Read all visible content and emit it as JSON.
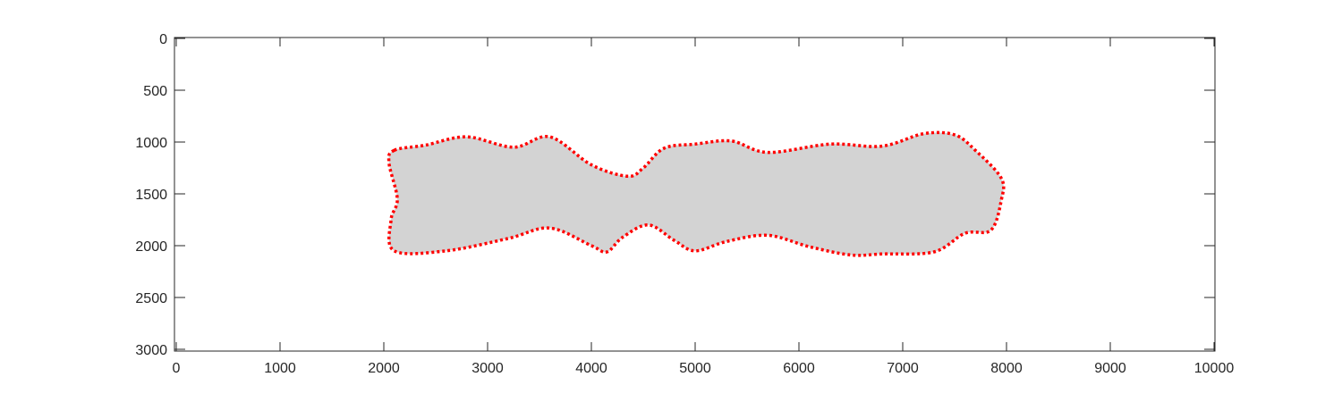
{
  "chart_data": {
    "type": "area",
    "title": "",
    "xlabel": "",
    "ylabel": "",
    "xlim": [
      0,
      10000
    ],
    "ylim": [
      0,
      3000
    ],
    "y_reversed": true,
    "grid": false,
    "x_ticks": [
      "0",
      "1000",
      "2000",
      "3000",
      "4000",
      "5000",
      "6000",
      "7000",
      "8000",
      "9000",
      "10000"
    ],
    "y_ticks": [
      "0",
      "500",
      "1000",
      "1500",
      "2000",
      "2500",
      "3000"
    ],
    "colors": {
      "fill": "#d3d3d3",
      "outline": "#ff0000",
      "axes": "#262626"
    },
    "series": [
      {
        "points": [
          [
            2100,
            1080
          ],
          [
            2400,
            1030
          ],
          [
            2800,
            950
          ],
          [
            3250,
            1050
          ],
          [
            3600,
            950
          ],
          [
            4000,
            1220
          ],
          [
            4350,
            1330
          ],
          [
            4500,
            1250
          ],
          [
            4700,
            1060
          ],
          [
            5000,
            1020
          ],
          [
            5350,
            990
          ],
          [
            5700,
            1100
          ],
          [
            6300,
            1020
          ],
          [
            6800,
            1040
          ],
          [
            7200,
            920
          ],
          [
            7500,
            930
          ],
          [
            7700,
            1080
          ],
          [
            7950,
            1350
          ],
          [
            7950,
            1560
          ],
          [
            7850,
            1850
          ],
          [
            7600,
            1880
          ],
          [
            7300,
            2060
          ],
          [
            6800,
            2080
          ],
          [
            6500,
            2090
          ],
          [
            6100,
            2010
          ],
          [
            5700,
            1900
          ],
          [
            5300,
            1960
          ],
          [
            5000,
            2050
          ],
          [
            4800,
            1950
          ],
          [
            4550,
            1800
          ],
          [
            4300,
            1920
          ],
          [
            4150,
            2060
          ],
          [
            4000,
            2000
          ],
          [
            3600,
            1830
          ],
          [
            3200,
            1930
          ],
          [
            2600,
            2050
          ],
          [
            2100,
            2050
          ],
          [
            2070,
            1750
          ],
          [
            2130,
            1550
          ],
          [
            2050,
            1200
          ]
        ]
      }
    ]
  }
}
